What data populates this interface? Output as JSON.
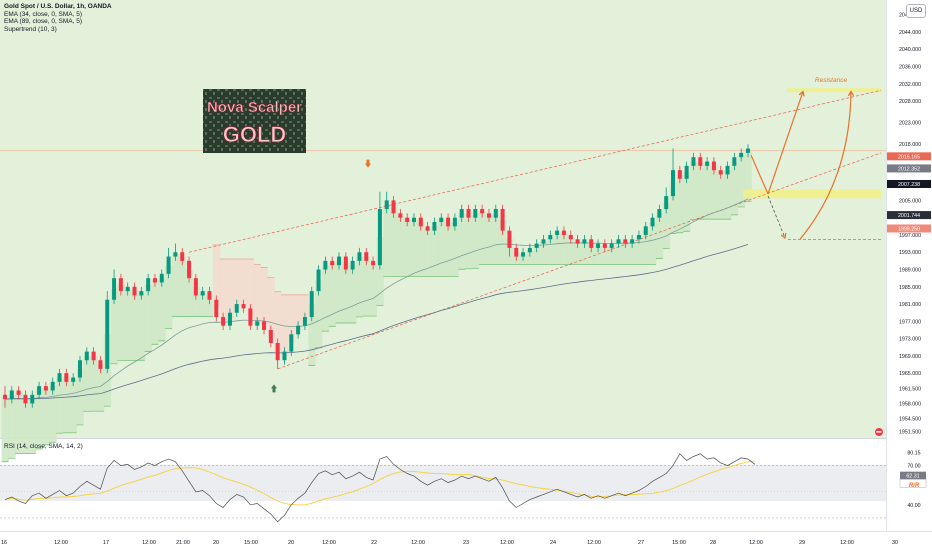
{
  "legend": {
    "symbol": "Gold Spot / U.S. Dollar, 1h, OANDA",
    "ema1": "EMA (34, close, 0, SMA, 5)",
    "ema2": "EMA (89, close, 0, SMA, 5)",
    "supertrend": "Supertrend (10, 3)"
  },
  "rsi_legend": "RSI (14, close, SMA, 14, 2)",
  "currency": "USD",
  "logo": {
    "line1": "Nova Scalper",
    "line2": "GOLD"
  },
  "resistance_label": "Resistance",
  "colors": {
    "up": "#089981",
    "down": "#f23645",
    "bull_bg": "#dcefd4",
    "support_zone": "#eef08a",
    "arrow": "#e8722a",
    "channel": "#e85c4a",
    "rsi_line": "#4c4c4c",
    "rsi_ma": "#f5d13a"
  },
  "price_axis": [
    "2048.000",
    "2044.000",
    "2040.000",
    "2036.000",
    "2032.000",
    "2028.000",
    "2023.000",
    "2018.000",
    "2009.000",
    "2005.000",
    "1997.000",
    "1993.000",
    "1989.000",
    "1985.000",
    "1981.000",
    "1977.000",
    "1973.000",
    "1969.000",
    "1965.000",
    "1961.500",
    "1958.000",
    "1954.500",
    "1951.500"
  ],
  "price_tags": [
    {
      "label": "2016.165",
      "color": "#e86a55",
      "value": 2015.2
    },
    {
      "label": "2012.352",
      "color": "#787b86",
      "value": 2012.4
    },
    {
      "label": "2007.238",
      "color": "#131722",
      "value": 2008.8
    },
    {
      "label": "2001.744",
      "color": "#2a2e39",
      "value": 2001.6
    },
    {
      "label": "1999.250",
      "color": "#f08a7a",
      "value": 1998.5
    }
  ],
  "rsi_axis": [
    "80.15",
    "70.00",
    "56.50",
    "40.00"
  ],
  "rsi_tags": [
    {
      "label": "62.31",
      "color": "#787b86",
      "value": 62.31
    },
    {
      "label": "56.50",
      "color": "#ffffff",
      "value": 56.5
    }
  ],
  "rsi_marker": "R/R",
  "time_axis": [
    "16",
    "12:00",
    "17",
    "12:00",
    "21:00",
    "20",
    "15:00",
    "20",
    "12:00",
    "22",
    "12:00",
    "23",
    "12:00",
    "24",
    "12:00",
    "27",
    "15:00",
    "28",
    "12:00",
    "29",
    "12:00",
    "30"
  ],
  "chart_data": {
    "type": "candlestick",
    "symbol": "XAUUSD",
    "timeframe": "1h",
    "ylim": [
      1950,
      2050
    ],
    "rsi_ylim": [
      20,
      85
    ],
    "rsi_levels": [
      70,
      30
    ],
    "levels": {
      "resistance": 2030.5,
      "support_zone": [
        2005.5,
        2007.5
      ],
      "horizontal_low": 1996,
      "current_price_line": 2016.6
    },
    "candles": [
      [
        1960,
        1959,
        1962,
        1957
      ],
      [
        1959,
        1961,
        1962,
        1958
      ],
      [
        1961,
        1960,
        1962,
        1959
      ],
      [
        1960,
        1958,
        1961,
        1957
      ],
      [
        1958,
        1960,
        1961,
        1957
      ],
      [
        1960,
        1962,
        1963,
        1959
      ],
      [
        1962,
        1961,
        1963,
        1960
      ],
      [
        1961,
        1963,
        1964,
        1960
      ],
      [
        1963,
        1965,
        1966,
        1962
      ],
      [
        1965,
        1963,
        1966,
        1962
      ],
      [
        1963,
        1964,
        1965,
        1962
      ],
      [
        1964,
        1968,
        1969,
        1963
      ],
      [
        1968,
        1970,
        1971,
        1967
      ],
      [
        1970,
        1968,
        1971,
        1967
      ],
      [
        1968,
        1966,
        1969,
        1965
      ],
      [
        1966,
        1982,
        1984,
        1965
      ],
      [
        1982,
        1987,
        1989,
        1981
      ],
      [
        1987,
        1984,
        1988,
        1983
      ],
      [
        1984,
        1985,
        1986,
        1983
      ],
      [
        1985,
        1983,
        1986,
        1982
      ],
      [
        1983,
        1984,
        1985,
        1982
      ],
      [
        1984,
        1987,
        1988,
        1983
      ],
      [
        1987,
        1986,
        1988,
        1985
      ],
      [
        1986,
        1988,
        1989,
        1985
      ],
      [
        1988,
        1992,
        1994,
        1987
      ],
      [
        1992,
        1993,
        1995,
        1991
      ],
      [
        1993,
        1991,
        1994,
        1990
      ],
      [
        1991,
        1987,
        1992,
        1986
      ],
      [
        1987,
        1983,
        1988,
        1982
      ],
      [
        1983,
        1984,
        1985,
        1982
      ],
      [
        1984,
        1982,
        1985,
        1981
      ],
      [
        1982,
        1978,
        1983,
        1977
      ],
      [
        1978,
        1976,
        1979,
        1975
      ],
      [
        1976,
        1979,
        1980,
        1975
      ],
      [
        1979,
        1981,
        1982,
        1978
      ],
      [
        1981,
        1980,
        1982,
        1979
      ],
      [
        1980,
        1976,
        1981,
        1975
      ],
      [
        1976,
        1977,
        1978,
        1975
      ],
      [
        1977,
        1975,
        1978,
        1974
      ],
      [
        1975,
        1972,
        1976,
        1971
      ],
      [
        1972,
        1968,
        1973,
        1966
      ],
      [
        1968,
        1970,
        1971,
        1967
      ],
      [
        1970,
        1974,
        1975,
        1969
      ],
      [
        1974,
        1976,
        1977,
        1973
      ],
      [
        1976,
        1978,
        1979,
        1975
      ],
      [
        1978,
        1984,
        1985,
        1977
      ],
      [
        1984,
        1989,
        1990,
        1983
      ],
      [
        1989,
        1991,
        1992,
        1988
      ],
      [
        1991,
        1990,
        1992,
        1989
      ],
      [
        1990,
        1992,
        1993,
        1989
      ],
      [
        1992,
        1989,
        1993,
        1988
      ],
      [
        1989,
        1991,
        1992,
        1988
      ],
      [
        1991,
        1993,
        1994,
        1990
      ],
      [
        1993,
        1991,
        1994,
        1990
      ],
      [
        1991,
        1990,
        1992,
        1989
      ],
      [
        1990,
        2003,
        2007,
        1989
      ],
      [
        2003,
        2005,
        2007,
        2002
      ],
      [
        2005,
        2002,
        2006,
        2001
      ],
      [
        2002,
        2001,
        2003,
        2000
      ],
      [
        2001,
        2000,
        2002,
        1999
      ],
      [
        2000,
        2001,
        2002,
        1999
      ],
      [
        2001,
        1999,
        2002,
        1998
      ],
      [
        1999,
        1998,
        2000,
        1997
      ],
      [
        1998,
        2000,
        2001,
        1997
      ],
      [
        2000,
        2001,
        2002,
        1999
      ],
      [
        2001,
        1999,
        2002,
        1998
      ],
      [
        1999,
        2001,
        2002,
        1998
      ],
      [
        2001,
        2003,
        2004,
        2000
      ],
      [
        2003,
        2001,
        2004,
        2000
      ],
      [
        2001,
        2003,
        2004,
        2000
      ],
      [
        2003,
        2002,
        2004,
        2001
      ],
      [
        2002,
        2001,
        2003,
        2000
      ],
      [
        2001,
        2003,
        2004,
        2000
      ],
      [
        2003,
        1998,
        2004,
        1997
      ],
      [
        1998,
        1994,
        1999,
        1992
      ],
      [
        1994,
        1992,
        1995,
        1991
      ],
      [
        1992,
        1993,
        1994,
        1991
      ],
      [
        1993,
        1994,
        1995,
        1992
      ],
      [
        1994,
        1995,
        1996,
        1993
      ],
      [
        1995,
        1996,
        1997,
        1994
      ],
      [
        1996,
        1997,
        1998,
        1995
      ],
      [
        1997,
        1998,
        1999,
        1996
      ],
      [
        1998,
        1997,
        1999,
        1996
      ],
      [
        1997,
        1996,
        1998,
        1995
      ],
      [
        1996,
        1995,
        1997,
        1994
      ],
      [
        1995,
        1996,
        1997,
        1994
      ],
      [
        1996,
        1994,
        1997,
        1993
      ],
      [
        1994,
        1995,
        1996,
        1993
      ],
      [
        1995,
        1994,
        1996,
        1993
      ],
      [
        1994,
        1995,
        1996,
        1993
      ],
      [
        1995,
        1996,
        1997,
        1994
      ],
      [
        1996,
        1995,
        1997,
        1994
      ],
      [
        1995,
        1996,
        1997,
        1994
      ],
      [
        1996,
        1997,
        1998,
        1995
      ],
      [
        1997,
        1999,
        2000,
        1996
      ],
      [
        1999,
        2001,
        2002,
        1998
      ],
      [
        2001,
        2003,
        2004,
        2000
      ],
      [
        2003,
        2006,
        2008,
        2002
      ],
      [
        2006,
        2012,
        2017,
        2005
      ],
      [
        2012,
        2010,
        2013,
        2009
      ],
      [
        2010,
        2013,
        2014,
        2009
      ],
      [
        2013,
        2015,
        2016,
        2012
      ],
      [
        2015,
        2013,
        2016,
        2012
      ],
      [
        2013,
        2014,
        2015,
        2012
      ],
      [
        2014,
        2012,
        2015,
        2011
      ],
      [
        2012,
        2011,
        2013,
        2010
      ],
      [
        2011,
        2013,
        2014,
        2010
      ],
      [
        2013,
        2015,
        2016,
        2012
      ],
      [
        2015,
        2016,
        2017,
        2014
      ],
      [
        2016,
        2017,
        2018,
        2015
      ]
    ],
    "rsi": [
      44,
      46,
      43,
      41,
      47,
      49,
      45,
      48,
      51,
      47,
      49,
      54,
      58,
      55,
      52,
      68,
      74,
      70,
      71,
      67,
      69,
      72,
      70,
      73,
      75,
      73,
      66,
      58,
      50,
      51,
      47,
      41,
      38,
      44,
      48,
      46,
      40,
      41,
      37,
      33,
      27,
      32,
      40,
      45,
      49,
      57,
      64,
      66,
      63,
      65,
      60,
      62,
      65,
      61,
      59,
      75,
      77,
      71,
      67,
      64,
      62,
      58,
      55,
      58,
      60,
      57,
      59,
      62,
      60,
      62,
      60,
      58,
      61,
      53,
      43,
      38,
      41,
      44,
      46,
      48,
      50,
      52,
      50,
      48,
      46,
      48,
      45,
      47,
      45,
      47,
      49,
      47,
      49,
      51,
      54,
      58,
      61,
      64,
      70,
      79,
      74,
      77,
      79,
      75,
      76,
      72,
      70,
      73,
      76,
      75,
      71
    ]
  }
}
